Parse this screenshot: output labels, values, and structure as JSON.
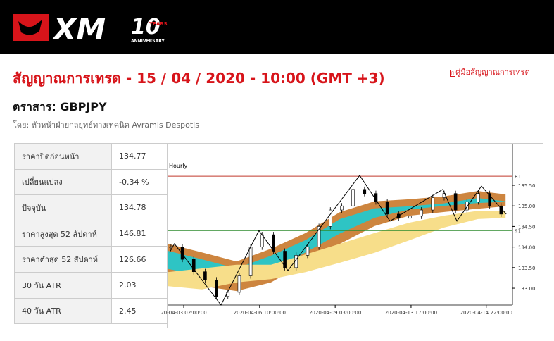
{
  "header": {
    "logo": {
      "brand": "XM",
      "number": "10",
      "years": "YEARS",
      "anniversary": "ANNIVERSARY"
    }
  },
  "title": "สัญญาณการเทรด - 15 / 04 / 2020 - 10:00 (GMT +3)",
  "guide_link": "คู่มือสัญญาณการเทรด",
  "instrument": "ตราสาร: GBPJPY",
  "author": "โดย: หัวหน้าฝ่ายกลยุทธ์ทางเทคนิค Avramis Despotis",
  "table": {
    "rows": [
      [
        "ราคาปิดก่อนหน้า",
        "134.77"
      ],
      [
        "เปลี่ยนแปลง",
        "-0.34 %"
      ],
      [
        "ปัจจุบัน",
        "134.78"
      ],
      [
        "ราคาสูงสุด 52 สัปดาห์",
        "146.81"
      ],
      [
        "ราคาต่ำสุด 52 สัปดาห์",
        "126.66"
      ],
      [
        "30 วัน ATR",
        "2.03"
      ],
      [
        "40 วัน ATR",
        "2.45"
      ]
    ]
  },
  "chart": {
    "label": "Hourly",
    "xlim": [
      0,
      100
    ],
    "ylim": [
      132.59,
      136.51
    ],
    "yticks": [
      {
        "value": 135.5,
        "label": "135.50"
      },
      {
        "value": 135,
        "label": "135.00"
      },
      {
        "value": 134.5,
        "label": "134.50"
      },
      {
        "value": 134,
        "label": "134.00"
      },
      {
        "value": 133.5,
        "label": "133.50"
      },
      {
        "value": 133,
        "label": "133.00"
      }
    ],
    "xticks": [
      {
        "value": 4.7,
        "label": "20-04-03 02:00:00"
      },
      {
        "value": 26.7,
        "label": "2020-04-06 10:00:00"
      },
      {
        "value": 48.6,
        "label": "2020-04-09 03:00:00"
      },
      {
        "value": 70.6,
        "label": "2020-04-13 17:00:00"
      },
      {
        "value": 92.4,
        "label": "2020-04-14 22:00:00"
      }
    ],
    "levels": [
      {
        "label": "R1",
        "value": 135.72,
        "color": "#c0392b"
      },
      {
        "label": "S1",
        "value": 134.4,
        "color": "#2e8b2e"
      }
    ],
    "bands": {
      "x": [
        0,
        10,
        20,
        30,
        40,
        50,
        60,
        70,
        80,
        90,
        98
      ],
      "series": [
        {
          "color": "#cd853f",
          "upper": [
            134.08,
            133.87,
            133.65,
            133.96,
            134.34,
            134.85,
            135.11,
            135.16,
            135.23,
            135.36,
            135.28
          ],
          "lower": [
            133.22,
            133.05,
            132.93,
            133.14,
            133.62,
            134.08,
            134.51,
            134.76,
            134.85,
            134.93,
            134.99
          ]
        },
        {
          "color": "#2ec4c4",
          "upper": [
            133.91,
            133.7,
            133.48,
            133.79,
            134.17,
            134.68,
            134.94,
            134.99,
            135.06,
            135.19,
            135.11
          ],
          "lower": [
            133.47,
            133.3,
            133.18,
            133.39,
            133.87,
            134.33,
            134.71,
            134.91,
            135,
            135.07,
            135.1
          ]
        },
        {
          "color": "#f7de8a",
          "upper": [
            133.39,
            133.48,
            133.57,
            133.57,
            133.82,
            134.08,
            134.34,
            134.59,
            134.76,
            134.88,
            134.88
          ],
          "lower": [
            133.05,
            132.97,
            133.14,
            133.22,
            133.39,
            133.62,
            133.86,
            134.16,
            134.47,
            134.68,
            134.71
          ]
        }
      ]
    },
    "closes": {
      "x": [
        1,
        4.3,
        7.6,
        10.9,
        14.2,
        17.5,
        20.8,
        24.1,
        27.4,
        30.7,
        34,
        37.3,
        40.6,
        43.9,
        47.2,
        50.5,
        53.8,
        57.1,
        60.4,
        63.7,
        67,
        70.3,
        73.6,
        76.9,
        80.2,
        83.5,
        86.8,
        90.1,
        93.4,
        96.7
      ],
      "values": [
        134,
        133.7,
        133.4,
        133.2,
        132.8,
        132.9,
        133.3,
        134,
        134.3,
        133.9,
        133.5,
        133.8,
        134,
        134.5,
        134.9,
        135,
        135.4,
        135.3,
        135.1,
        134.8,
        134.7,
        134.75,
        134.9,
        135.2,
        135.3,
        134.9,
        135.1,
        135.3,
        135,
        134.8
      ]
    },
    "zigzag": {
      "x": [
        0.6,
        2,
        15.5,
        26.5,
        34.9,
        55.7,
        64.5,
        79.8,
        83.9,
        91,
        98.2
      ],
      "values": [
        133.87,
        134.08,
        132.59,
        134.4,
        133.43,
        135.74,
        134.63,
        135.4,
        134.63,
        135.48,
        134.8
      ]
    }
  }
}
